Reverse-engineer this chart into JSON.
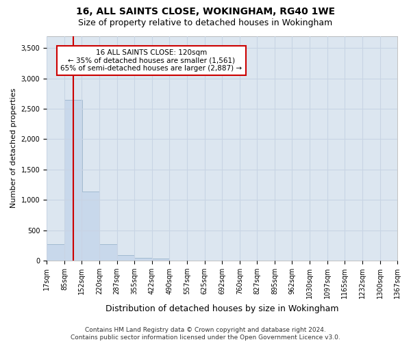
{
  "title": "16, ALL SAINTS CLOSE, WOKINGHAM, RG40 1WE",
  "subtitle": "Size of property relative to detached houses in Wokingham",
  "xlabel": "Distribution of detached houses by size in Wokingham",
  "ylabel": "Number of detached properties",
  "annotation_text": "16 ALL SAINTS CLOSE: 120sqm\n← 35% of detached houses are smaller (1,561)\n65% of semi-detached houses are larger (2,887) →",
  "footer_line1": "Contains HM Land Registry data © Crown copyright and database right 2024.",
  "footer_line2": "Contains public sector information licensed under the Open Government Licence v3.0.",
  "bin_edges": [
    17,
    85,
    152,
    220,
    287,
    355,
    422,
    490,
    557,
    625,
    692,
    760,
    827,
    895,
    962,
    1030,
    1097,
    1165,
    1232,
    1300,
    1367
  ],
  "bar_heights": [
    270,
    2650,
    1140,
    275,
    85,
    50,
    30,
    0,
    0,
    0,
    0,
    0,
    0,
    0,
    0,
    0,
    0,
    0,
    0,
    0
  ],
  "bar_color": "#c8d8eb",
  "bar_edge_color": "#9ab5cc",
  "vline_x": 120,
  "vline_color": "#cc0000",
  "annotation_box_edge_color": "#cc0000",
  "annotation_box_face_color": "#ffffff",
  "ylim": [
    0,
    3700
  ],
  "yticks": [
    0,
    500,
    1000,
    1500,
    2000,
    2500,
    3000,
    3500
  ],
  "grid_color": "#c8d4e4",
  "axes_background": "#dce6f0",
  "tick_fontsize": 7,
  "ylabel_fontsize": 8,
  "xlabel_fontsize": 9,
  "title_fontsize": 10,
  "subtitle_fontsize": 9,
  "footer_fontsize": 6.5
}
